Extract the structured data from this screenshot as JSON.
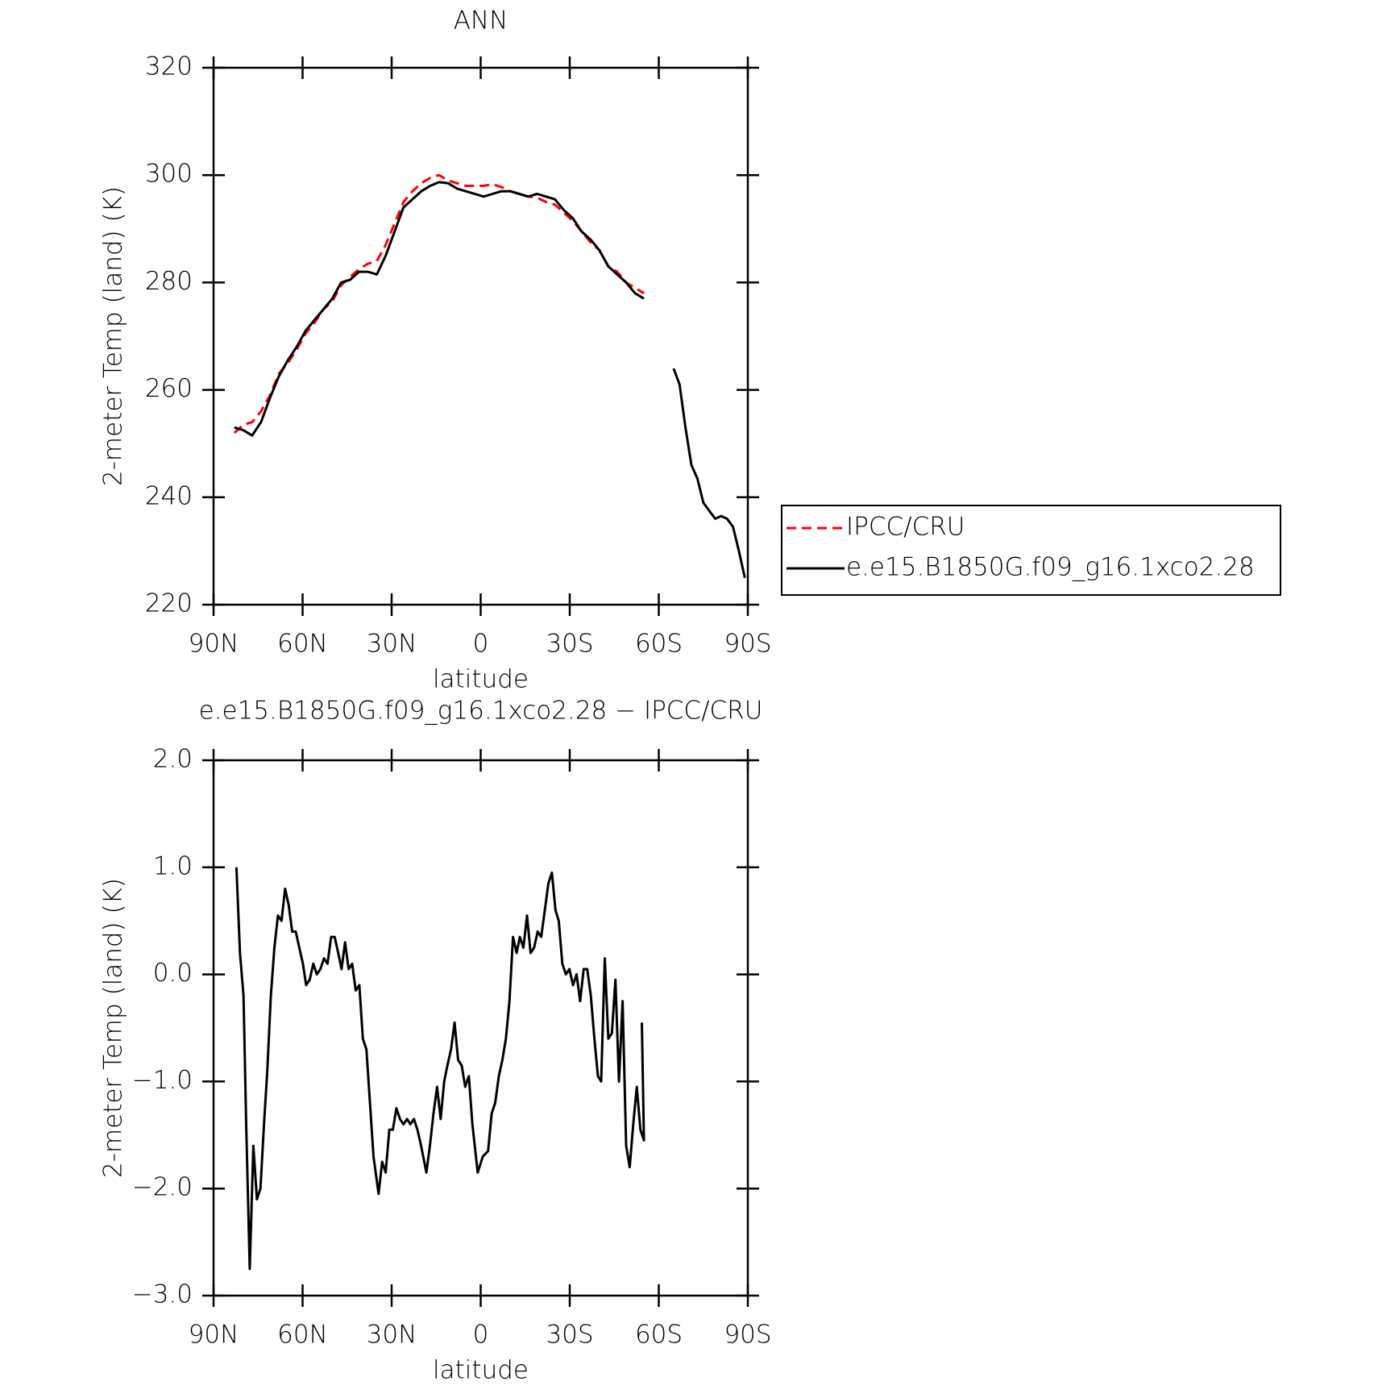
{
  "chart_data": [
    {
      "type": "line",
      "title": "ANN",
      "x_label": "latitude",
      "y_label": "2-meter Temp (land) (K)",
      "xlim": [
        90,
        -90
      ],
      "xticks": [
        {
          "value": 90,
          "label": "90N"
        },
        {
          "value": 60,
          "label": "60N"
        },
        {
          "value": 30,
          "label": "30N"
        },
        0,
        {
          "value": -30,
          "label": "30S"
        },
        {
          "value": -60,
          "label": "60S"
        },
        {
          "value": -90,
          "label": "90S"
        }
      ],
      "ylim": [
        220,
        320
      ],
      "yticks": [
        220,
        240,
        260,
        280,
        300,
        320
      ],
      "legend": "right",
      "x": [
        83,
        80,
        77,
        74,
        71,
        68,
        65,
        62,
        59,
        56,
        53,
        50,
        47,
        44,
        41,
        38,
        35,
        32,
        29,
        26,
        23,
        20,
        17,
        14,
        11,
        8,
        5,
        2,
        -1,
        -4,
        -7,
        -10,
        -13,
        -16,
        -19,
        -22,
        -25,
        -28,
        -31,
        -34,
        -37,
        -40,
        -43,
        -46,
        -49,
        -52,
        -55,
        -60,
        -65,
        -67,
        -69,
        -71,
        -73,
        -75,
        -77,
        -79,
        -81,
        -83,
        -85,
        -87,
        -89
      ],
      "series": [
        {
          "name": "IPCC/CRU",
          "color": "#ff0000",
          "line_style": "dashed",
          "values": [
            252,
            253.5,
            254,
            256,
            259,
            263,
            265,
            267.5,
            270.5,
            272.5,
            275,
            276.5,
            279.5,
            281,
            282.5,
            283.5,
            284,
            287,
            291,
            295,
            297,
            298.5,
            299.5,
            300,
            299,
            298.5,
            298,
            298,
            298,
            298.3,
            297.8,
            297,
            296.5,
            296,
            295.8,
            295,
            294.5,
            293,
            291.5,
            289.5,
            287.5,
            286,
            283,
            282,
            280,
            279,
            278,
            null,
            null,
            null,
            null,
            null,
            null,
            null,
            null,
            null,
            null,
            null,
            null,
            null,
            null
          ]
        },
        {
          "name": "e.e15.B1850G.f09_g16.1xco2.28",
          "color": "#000000",
          "line_style": "solid",
          "values": [
            253,
            252.5,
            251.5,
            254,
            258.5,
            262.5,
            265.5,
            268,
            271,
            273,
            275,
            277,
            280,
            280.5,
            282,
            282,
            281.5,
            285,
            289.5,
            294,
            295.5,
            297,
            298,
            298.7,
            298.5,
            297.5,
            297,
            296.5,
            296,
            296.5,
            297,
            297,
            296.5,
            296,
            296.5,
            296,
            295.5,
            293.5,
            292,
            289.5,
            288,
            286,
            283,
            281.5,
            280,
            278,
            277,
            null,
            264,
            261,
            253,
            246,
            243.5,
            239,
            237.5,
            236,
            236.5,
            236,
            234.5,
            230,
            225
          ]
        }
      ]
    },
    {
      "type": "line",
      "title": "e.e15.B1850G.f09_g16.1xco2.28 − IPCC/CRU",
      "x_label": "latitude",
      "y_label": "2-meter Temp (land) (K)",
      "xlim": [
        90,
        -90
      ],
      "xticks": [
        {
          "value": 90,
          "label": "90N"
        },
        {
          "value": 60,
          "label": "60N"
        },
        {
          "value": 30,
          "label": "30N"
        },
        0,
        {
          "value": -30,
          "label": "30S"
        },
        {
          "value": -60,
          "label": "60S"
        },
        {
          "value": -90,
          "label": "90S"
        }
      ],
      "ylim": [
        -3,
        2
      ],
      "yticks": [
        {
          "value": -3,
          "label": "−3.0"
        },
        {
          "value": -2,
          "label": "−2.0"
        },
        {
          "value": -1,
          "label": "−1.0"
        },
        {
          "value": 0,
          "label": "0.0"
        },
        {
          "value": 1,
          "label": "1.0"
        },
        {
          "value": 2,
          "label": "2.0"
        }
      ],
      "color": "#000000",
      "x": [
        82.3,
        81.1,
        79.9,
        79,
        77.8,
        76.6,
        75.4,
        74.2,
        73,
        71.9,
        70.7,
        69.5,
        68.3,
        67.1,
        65.9,
        64.7,
        63.5,
        62.3,
        61.1,
        59.9,
        58.8,
        57.6,
        56.4,
        55.2,
        54,
        52.8,
        51.6,
        50.4,
        49.2,
        48,
        46.9,
        45.7,
        44.5,
        43.3,
        42.1,
        40.9,
        39.7,
        38.5,
        37.3,
        36.1,
        34.4,
        33.2,
        32,
        30.8,
        29.6,
        28.4,
        27.2,
        26,
        24.8,
        23.7,
        22.5,
        21.3,
        20.1,
        18.3,
        17.1,
        15.9,
        14.7,
        13.5,
        12.3,
        11.2,
        10,
        8.8,
        7.6,
        6.4,
        5.2,
        4,
        2.8,
        1,
        -0.7,
        -2.5,
        -3.7,
        -4.9,
        -6.1,
        -7.3,
        -8.5,
        -9.7,
        -10.9,
        -12.1,
        -13.2,
        -14.4,
        -15.6,
        -16.8,
        -18,
        -19.2,
        -20.4,
        -21.6,
        -22.8,
        -24,
        -25.2,
        -26.3,
        -27.5,
        -28.7,
        -29.9,
        -31.1,
        -32.3,
        -33.5,
        -34.7,
        -35.9,
        -37.1,
        -38.3,
        -39.5,
        -40.6,
        -41.8,
        -43,
        -44.2,
        -45.4,
        -46.6,
        -47.8,
        -49,
        -50.2,
        -51.4,
        -52.6,
        -53.8,
        -55,
        -54.3
      ],
      "values": [
        1.0,
        0.2,
        -0.2,
        -1.4,
        -2.75,
        -1.6,
        -2.1,
        -2.0,
        -1.4,
        -0.9,
        -0.2,
        0.25,
        0.55,
        0.5,
        0.8,
        0.65,
        0.4,
        0.4,
        0.25,
        0.1,
        -0.1,
        -0.05,
        0.1,
        0.0,
        0.05,
        0.15,
        0.1,
        0.35,
        0.35,
        0.2,
        0.05,
        0.3,
        0.05,
        0.1,
        -0.15,
        -0.1,
        -0.6,
        -0.7,
        -1.2,
        -1.7,
        -2.05,
        -1.75,
        -1.85,
        -1.45,
        -1.45,
        -1.25,
        -1.35,
        -1.4,
        -1.35,
        -1.4,
        -1.35,
        -1.45,
        -1.6,
        -1.85,
        -1.6,
        -1.3,
        -1.05,
        -1.35,
        -1.0,
        -0.85,
        -0.7,
        -0.45,
        -0.8,
        -0.85,
        -1.05,
        -0.95,
        -1.4,
        -1.85,
        -1.7,
        -1.65,
        -1.3,
        -1.2,
        -0.95,
        -0.8,
        -0.6,
        -0.25,
        0.35,
        0.2,
        0.35,
        0.25,
        0.55,
        0.2,
        0.25,
        0.4,
        0.35,
        0.6,
        0.85,
        0.95,
        0.6,
        0.5,
        0.1,
        0.0,
        0.05,
        -0.1,
        0.0,
        -0.25,
        0.05,
        0.05,
        -0.2,
        -0.6,
        -0.95,
        -1.0,
        0.15,
        -0.6,
        -0.55,
        -0.05,
        -1.0,
        -0.25,
        -1.6,
        -1.8,
        -1.4,
        -1.05,
        -1.45,
        -1.55,
        -0.45
      ]
    }
  ]
}
